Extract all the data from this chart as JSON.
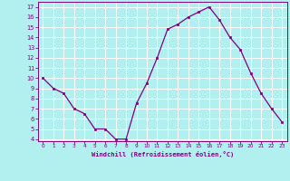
{
  "x": [
    0,
    1,
    2,
    3,
    4,
    5,
    6,
    7,
    8,
    9,
    10,
    11,
    12,
    13,
    14,
    15,
    16,
    17,
    18,
    19,
    20,
    21,
    22,
    23
  ],
  "y": [
    10,
    9,
    8.5,
    7,
    6.5,
    5,
    5,
    4,
    4,
    7.5,
    9.5,
    12,
    14.8,
    15.3,
    16,
    16.5,
    17,
    15.7,
    14,
    12.8,
    10.5,
    8.5,
    7,
    5.7
  ],
  "line_color": "#800080",
  "marker_color": "#800080",
  "bg_color": "#b2f0f0",
  "grid_color": "#d0e8e8",
  "xlabel": "Windchill (Refroidissement éolien,°C)",
  "xlabel_color": "#800080",
  "tick_color": "#800080",
  "spine_color": "#800080",
  "ylim": [
    3.8,
    17.5
  ],
  "xlim": [
    -0.5,
    23.5
  ],
  "yticks": [
    4,
    5,
    6,
    7,
    8,
    9,
    10,
    11,
    12,
    13,
    14,
    15,
    16,
    17
  ],
  "xticks": [
    0,
    1,
    2,
    3,
    4,
    5,
    6,
    7,
    8,
    9,
    10,
    11,
    12,
    13,
    14,
    15,
    16,
    17,
    18,
    19,
    20,
    21,
    22,
    23
  ]
}
